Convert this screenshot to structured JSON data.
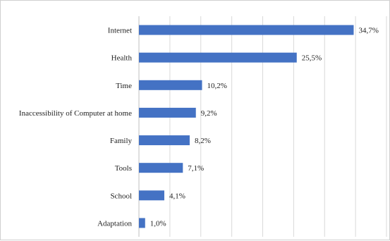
{
  "chart_data": {
    "type": "bar",
    "orientation": "horizontal",
    "categories": [
      "Internet",
      "Health",
      "Time",
      "Inaccessibility of Computer at home",
      "Family",
      "Tools",
      "School",
      "Adaptation"
    ],
    "values": [
      34.7,
      25.5,
      10.2,
      9.2,
      8.2,
      7.1,
      4.1,
      1.0
    ],
    "data_labels": [
      "34,7%",
      "25,5%",
      "10,2%",
      "9,2%",
      "8,2%",
      "7,1%",
      "4,1%",
      "1,0%"
    ],
    "title": "",
    "xlabel": "",
    "ylabel": "",
    "xlim": [
      0,
      40
    ],
    "grid": true,
    "bar_color": "#4472c4"
  }
}
